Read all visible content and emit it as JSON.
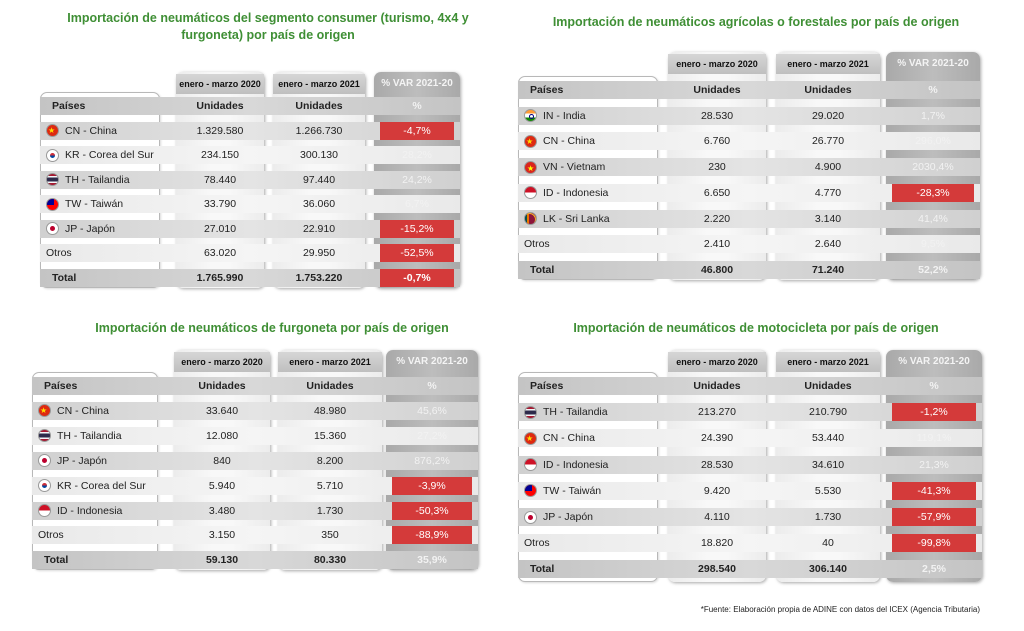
{
  "panels": [
    {
      "title": "Importación de neumáticos del segmento consumer (turismo, 4x4 y furgoneta) por país de origen",
      "period_2020": "enero - marzo 2020",
      "period_2021": "enero - marzo 2021",
      "var_header": "% VAR 2021-20",
      "col_country": "Países",
      "col_units": "Unidades",
      "col_pct": "%",
      "rows": [
        {
          "flag": "flag-cn",
          "country": "CN - China",
          "v2020": "1.329.580",
          "v2021": "1.266.730",
          "var": "-4,7%",
          "neg": true
        },
        {
          "flag": "flag-kr",
          "country": "KR - Corea del Sur",
          "v2020": "234.150",
          "v2021": "300.130",
          "var": "28,2%",
          "neg": false
        },
        {
          "flag": "flag-th",
          "country": "TH - Tailandia",
          "v2020": "78.440",
          "v2021": "97.440",
          "var": "24,2%",
          "neg": false
        },
        {
          "flag": "flag-tw",
          "country": "TW - Taiwán",
          "v2020": "33.790",
          "v2021": "36.060",
          "var": "6,7%",
          "neg": false
        },
        {
          "flag": "flag-jp",
          "country": "JP -  Japón",
          "v2020": "27.010",
          "v2021": "22.910",
          "var": "-15,2%",
          "neg": true
        },
        {
          "flag": "",
          "country": "Otros",
          "v2020": "63.020",
          "v2021": "29.950",
          "var": "-52,5%",
          "neg": true
        }
      ],
      "total": {
        "country": "Total",
        "v2020": "1.765.990",
        "v2021": "1.753.220",
        "var": "-0,7%",
        "neg": true
      }
    },
    {
      "title": "Importación de neumáticos agrícolas o forestales por país de origen",
      "period_2020": "enero - marzo 2020",
      "period_2021": "enero - marzo 2021",
      "var_header": "% VAR 2021-20",
      "col_country": "Países",
      "col_units": "Unidades",
      "col_pct": "%",
      "rows": [
        {
          "flag": "flag-in",
          "country": "IN - India",
          "v2020": "28.530",
          "v2021": "29.020",
          "var": "1,7%",
          "neg": false
        },
        {
          "flag": "flag-cn",
          "country": "CN - China",
          "v2020": "6.760",
          "v2021": "26.770",
          "var": "296,0%",
          "neg": false
        },
        {
          "flag": "flag-vn",
          "country": "VN - Vietnam",
          "v2020": "230",
          "v2021": "4.900",
          "var": "2030,4%",
          "neg": false
        },
        {
          "flag": "flag-id",
          "country": "ID - Indonesia",
          "v2020": "6.650",
          "v2021": "4.770",
          "var": "-28,3%",
          "neg": true
        },
        {
          "flag": "flag-lk",
          "country": "LK - Sri Lanka",
          "v2020": "2.220",
          "v2021": "3.140",
          "var": "41,4%",
          "neg": false
        },
        {
          "flag": "",
          "country": "Otros",
          "v2020": "2.410",
          "v2021": "2.640",
          "var": "9,5%",
          "neg": false
        }
      ],
      "total": {
        "country": "Total",
        "v2020": "46.800",
        "v2021": "71.240",
        "var": "52,2%",
        "neg": false
      }
    },
    {
      "title": "Importación de neumáticos de furgoneta por país de origen",
      "period_2020": "enero - marzo 2020",
      "period_2021": "enero - marzo 2021",
      "var_header": "% VAR 2021-20",
      "col_country": "Países",
      "col_units": "Unidades",
      "col_pct": "%",
      "rows": [
        {
          "flag": "flag-cn",
          "country": "CN - China",
          "v2020": "33.640",
          "v2021": "48.980",
          "var": "45,6%",
          "neg": false
        },
        {
          "flag": "flag-th",
          "country": "TH - Tailandia",
          "v2020": "12.080",
          "v2021": "15.360",
          "var": "27,2%",
          "neg": false
        },
        {
          "flag": "flag-jp",
          "country": "JP - Japón",
          "v2020": "840",
          "v2021": "8.200",
          "var": "876,2%",
          "neg": false
        },
        {
          "flag": "flag-kr",
          "country": "KR - Corea del Sur",
          "v2020": "5.940",
          "v2021": "5.710",
          "var": "-3,9%",
          "neg": true
        },
        {
          "flag": "flag-id",
          "country": "ID - Indonesia",
          "v2020": "3.480",
          "v2021": "1.730",
          "var": "-50,3%",
          "neg": true
        },
        {
          "flag": "",
          "country": "Otros",
          "v2020": "3.150",
          "v2021": "350",
          "var": "-88,9%",
          "neg": true
        }
      ],
      "total": {
        "country": "Total",
        "v2020": "59.130",
        "v2021": "80.330",
        "var": "35,9%",
        "neg": false
      }
    },
    {
      "title": "Importación de neumáticos de motocicleta por país de origen",
      "period_2020": "enero - marzo  2020",
      "period_2021": "enero - marzo 2021",
      "var_header": "% VAR 2021-20",
      "col_country": "Países",
      "col_units": "Unidades",
      "col_pct": "%",
      "rows": [
        {
          "flag": "flag-th",
          "country": "TH - Tailandia",
          "v2020": "213.270",
          "v2021": "210.790",
          "var": "-1,2%",
          "neg": true
        },
        {
          "flag": "flag-cn",
          "country": "CN - China",
          "v2020": "24.390",
          "v2021": "53.440",
          "var": "119,1%",
          "neg": false
        },
        {
          "flag": "flag-id",
          "country": "ID - Indonesia",
          "v2020": "28.530",
          "v2021": "34.610",
          "var": "21,3%",
          "neg": false
        },
        {
          "flag": "flag-tw",
          "country": "TW - Taiwán",
          "v2020": "9.420",
          "v2021": "5.530",
          "var": "-41,3%",
          "neg": true
        },
        {
          "flag": "flag-jp",
          "country": "JP - Japón",
          "v2020": "4.110",
          "v2021": "1.730",
          "var": "-57,9%",
          "neg": true
        },
        {
          "flag": "",
          "country": "Otros",
          "v2020": "18.820",
          "v2021": "40",
          "var": "-99,8%",
          "neg": true
        }
      ],
      "total": {
        "country": "Total",
        "v2020": "298.540",
        "v2021": "306.140",
        "var": "2,5%",
        "neg": false
      }
    }
  ],
  "footnote": "*Fuente: Elaboración propia de ADINE con datos del ICEX (Agencia Tributaria)"
}
